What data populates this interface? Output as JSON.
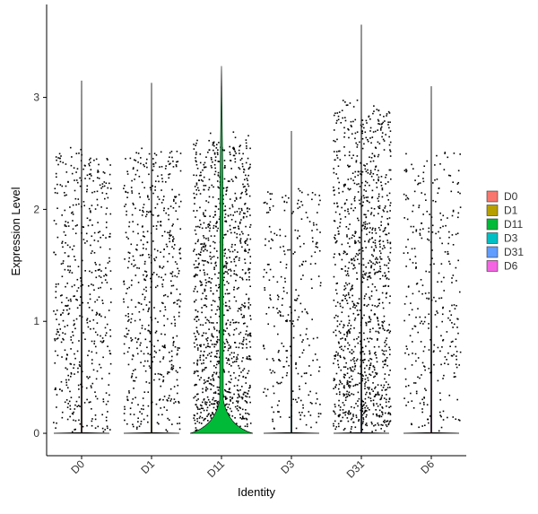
{
  "chart_data": {
    "type": "violin",
    "x_label": "Identity",
    "y_label": "Expression Level",
    "categories": [
      "D0",
      "D1",
      "D11",
      "D3",
      "D31",
      "D6"
    ],
    "colors": [
      "#F8766D",
      "#B79F00",
      "#00BA38",
      "#00BFC4",
      "#619CFF",
      "#F564E3"
    ],
    "values": [
      3.15,
      3.13,
      3.28,
      2.7,
      3.65,
      3.1
    ],
    "ylim": [
      -0.2,
      3.83
    ],
    "yticks": [
      0,
      1,
      2,
      3
    ],
    "legend": "right"
  }
}
